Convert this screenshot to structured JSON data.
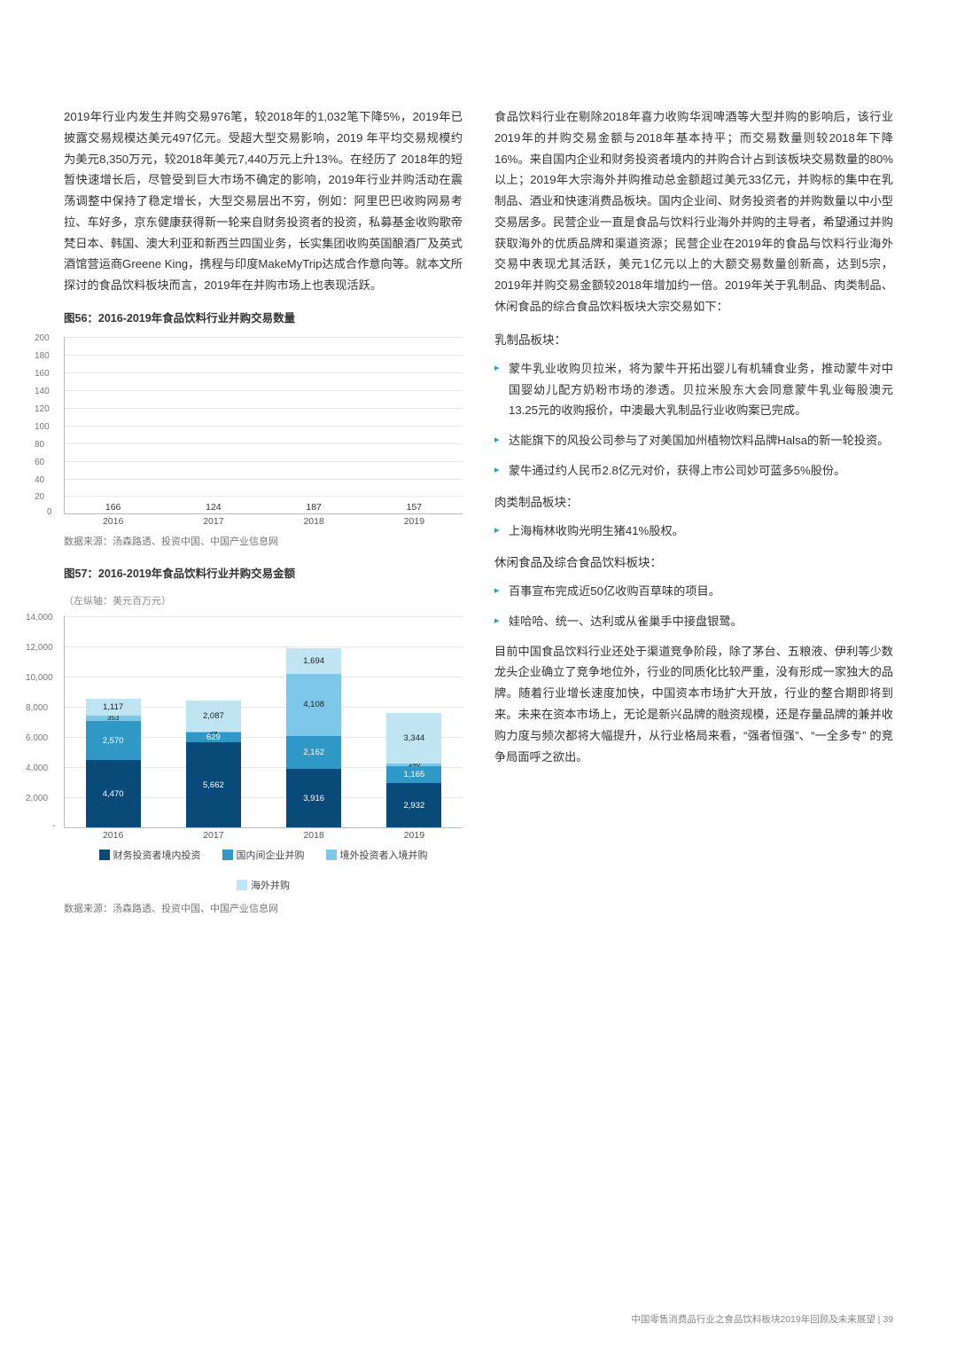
{
  "left_para": "2019年行业内发生并购交易976笔，较2018年的1,032笔下降5%，2019年已披露交易规模达美元497亿元。受超大型交易影响，2019 年平均交易规模约为美元8,350万元，较2018年美元7,440万元上升13%。在经历了 2018年的短暂快速增长后，尽管受到巨大市场不确定的影响，2019年行业并购活动在震荡调整中保持了稳定增长，大型交易层出不穷，例如：阿里巴巴收购网易考拉、车好多，京东健康获得新一轮来自财务投资者的投资，私募基金收购歌帝梵日本、韩国、澳大利亚和新西兰四国业务，长实集团收购英国酿酒厂及英式酒馆营运商Greene King，携程与印度MakeMyTrip达成合作意向等。就本文所探讨的食品饮料板块而言，2019年在并购市场上也表现活跃。",
  "chart56": {
    "title": "图56：2016-2019年食品饮料行业并购交易数量",
    "type": "bar",
    "categories": [
      "2016",
      "2017",
      "2018",
      "2019"
    ],
    "values": [
      166,
      124,
      187,
      157
    ],
    "ymax": 200,
    "ytick_step": 20,
    "bar_color": "#2f98c6",
    "grid_color": "#e7e7e7",
    "axis_color": "#bbbbbb",
    "label_fontsize": 10.5,
    "source": "数据来源：汤森路透、投资中国、中国产业信息网"
  },
  "chart57": {
    "title": "图57：2016-2019年食品饮料行业并购交易金额",
    "axis_unit": "（左纵轴：美元百万元）",
    "type": "stacked-bar",
    "categories": [
      "2016",
      "2017",
      "2018",
      "2019"
    ],
    "ymax": 14000,
    "ytick_step": 2000,
    "series": [
      {
        "name": "财务投资者境内投资",
        "color": "#0a4a78",
        "values": [
          4470,
          5662,
          3916,
          2932
        ]
      },
      {
        "name": "国内间企业并购",
        "color": "#2f98c6",
        "values": [
          2570,
          629,
          2162,
          1165
        ]
      },
      {
        "name": "境外投资者入境并购",
        "color": "#7dc8e8",
        "values": [
          353,
          39,
          4108,
          146
        ]
      },
      {
        "name": "海外并购",
        "color": "#bfe4f2",
        "values": [
          1117,
          2087,
          1694,
          3344
        ]
      }
    ],
    "legend_layout": [
      "财务投资者境内投资",
      "国内间企业并购",
      "境外投资者入境并购",
      "海外并购"
    ],
    "grid_color": "#e7e7e7",
    "source": "数据来源：汤森路透、投资中国、中国产业信息网"
  },
  "right_para1": "食品饮料行业在剔除2018年喜力收购华润啤酒等大型并购的影响后，该行业2019年的并购交易金额与2018年基本持平；而交易数量则较2018年下降16%。来自国内企业和财务投资者境内的并购合计占到该板块交易数量的80%以上；2019年大宗海外并购推动总金额超过美元33亿元，并购标的集中在乳制品、酒业和快速消费品板块。国内企业间、财务投资者的并购数量以中小型交易居多。民营企业一直是食品与饮料行业海外并购的主导者，希望通过并购获取海外的优质品牌和渠道资源；民营企业在2019年的食品与饮料行业海外交易中表现尤其活跃，美元1亿元以上的大额交易数量创新高，达到5宗，2019年并购交易金额较2018年增加约一倍。2019年关于乳制品、肉类制品、休闲食品的综合食品饮料板块大宗交易如下：",
  "sec_dairy_head": "乳制品板块：",
  "dairy_items": [
    "蒙牛乳业收购贝拉米，将为蒙牛开拓出婴儿有机辅食业务，推动蒙牛对中国婴幼儿配方奶粉市场的渗透。贝拉米股东大会同意蒙牛乳业每股澳元13.25元的收购报价，中澳最大乳制品行业收购案已完成。",
    "达能旗下的风投公司参与了对美国加州植物饮料品牌Halsa的新一轮投资。",
    "蒙牛通过约人民币2.8亿元对价，获得上市公司妙可蓝多5%股份。"
  ],
  "sec_meat_head": "肉类制品板块：",
  "meat_items": [
    "上海梅林收购光明生猪41%股权。"
  ],
  "sec_snack_head": "休闲食品及综合食品饮料板块：",
  "snack_items": [
    "百事宣布完成近50亿收购百草味的项目。",
    "娃哈哈、统一、达利或从雀巢手中接盘银鹭。"
  ],
  "right_para2": "目前中国食品饮料行业还处于渠道竞争阶段，除了茅台、五粮液、伊利等少数龙头企业确立了竞争地位外，行业的同质化比较严重，没有形成一家独大的品牌。随着行业增长速度加快，中国资本市场扩大开放，行业的整合期即将到来。未来在资本市场上，无论是新兴品牌的融资规模，还是存量品牌的兼并收购力度与频次都将大幅提升，从行业格局来看，“强者恒强”、“一全多专” 的竞争局面呼之欲出。",
  "footer": {
    "text": "中国零售消费品行业之食品饮料板块2019年回顾及未来展望",
    "sep": " | ",
    "page": "39"
  },
  "colors": {
    "text": "#333333",
    "accent": "#2f98c6",
    "muted": "#888888"
  }
}
